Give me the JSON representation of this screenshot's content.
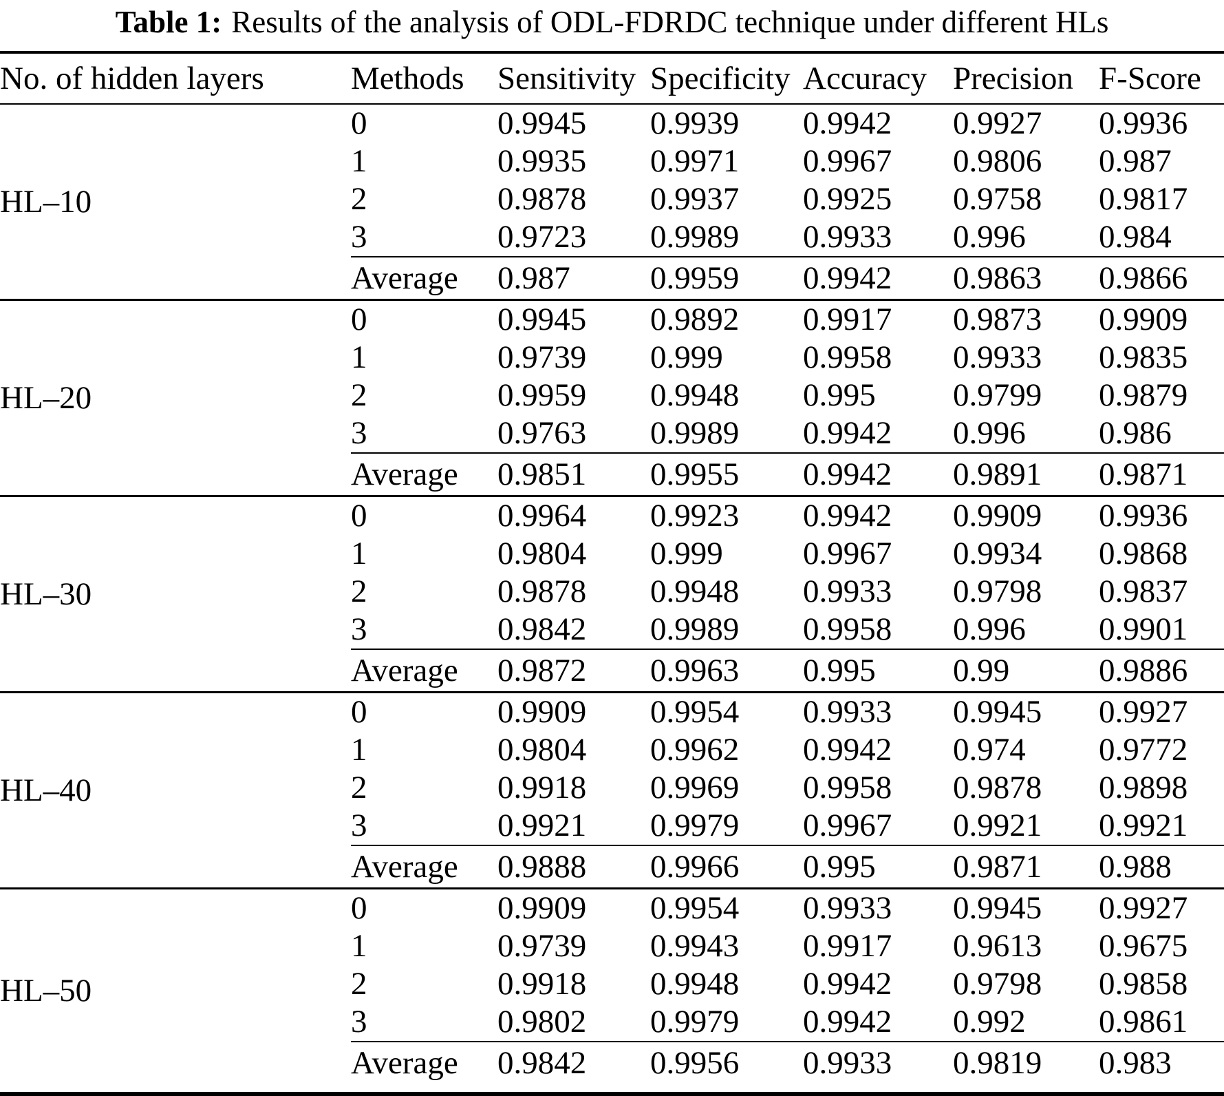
{
  "title": {
    "label": "Table 1:",
    "text": "Results of the analysis of ODL-FDRDC technique under different HLs"
  },
  "table": {
    "columns": [
      "No. of hidden layers",
      "Methods",
      "Sensitivity",
      "Specificity",
      "Accuracy",
      "Precision",
      "F-Score"
    ],
    "average_label": "Average",
    "sections": [
      {
        "group": "HL–10",
        "rows": [
          {
            "method": "0",
            "values": [
              "0.9945",
              "0.9939",
              "0.9942",
              "0.9927",
              "0.9936"
            ]
          },
          {
            "method": "1",
            "values": [
              "0.9935",
              "0.9971",
              "0.9967",
              "0.9806",
              "0.987"
            ]
          },
          {
            "method": "2",
            "values": [
              "0.9878",
              "0.9937",
              "0.9925",
              "0.9758",
              "0.9817"
            ]
          },
          {
            "method": "3",
            "values": [
              "0.9723",
              "0.9989",
              "0.9933",
              "0.996",
              "0.984"
            ]
          }
        ],
        "average": [
          "0.987",
          "0.9959",
          "0.9942",
          "0.9863",
          "0.9866"
        ]
      },
      {
        "group": "HL–20",
        "rows": [
          {
            "method": "0",
            "values": [
              "0.9945",
              "0.9892",
              "0.9917",
              "0.9873",
              "0.9909"
            ]
          },
          {
            "method": "1",
            "values": [
              "0.9739",
              "0.999",
              "0.9958",
              "0.9933",
              "0.9835"
            ]
          },
          {
            "method": "2",
            "values": [
              "0.9959",
              "0.9948",
              "0.995",
              "0.9799",
              "0.9879"
            ]
          },
          {
            "method": "3",
            "values": [
              "0.9763",
              "0.9989",
              "0.9942",
              "0.996",
              "0.986"
            ]
          }
        ],
        "average": [
          "0.9851",
          "0.9955",
          "0.9942",
          "0.9891",
          "0.9871"
        ]
      },
      {
        "group": "HL–30",
        "rows": [
          {
            "method": "0",
            "values": [
              "0.9964",
              "0.9923",
              "0.9942",
              "0.9909",
              "0.9936"
            ]
          },
          {
            "method": "1",
            "values": [
              "0.9804",
              "0.999",
              "0.9967",
              "0.9934",
              "0.9868"
            ]
          },
          {
            "method": "2",
            "values": [
              "0.9878",
              "0.9948",
              "0.9933",
              "0.9798",
              "0.9837"
            ]
          },
          {
            "method": "3",
            "values": [
              "0.9842",
              "0.9989",
              "0.9958",
              "0.996",
              "0.9901"
            ]
          }
        ],
        "average": [
          "0.9872",
          "0.9963",
          "0.995",
          "0.99",
          "0.9886"
        ]
      },
      {
        "group": "HL–40",
        "rows": [
          {
            "method": "0",
            "values": [
              "0.9909",
              "0.9954",
              "0.9933",
              "0.9945",
              "0.9927"
            ]
          },
          {
            "method": "1",
            "values": [
              "0.9804",
              "0.9962",
              "0.9942",
              "0.974",
              "0.9772"
            ]
          },
          {
            "method": "2",
            "values": [
              "0.9918",
              "0.9969",
              "0.9958",
              "0.9878",
              "0.9898"
            ]
          },
          {
            "method": "3",
            "values": [
              "0.9921",
              "0.9979",
              "0.9967",
              "0.9921",
              "0.9921"
            ]
          }
        ],
        "average": [
          "0.9888",
          "0.9966",
          "0.995",
          "0.9871",
          "0.988"
        ]
      },
      {
        "group": "HL–50",
        "rows": [
          {
            "method": "0",
            "values": [
              "0.9909",
              "0.9954",
              "0.9933",
              "0.9945",
              "0.9927"
            ]
          },
          {
            "method": "1",
            "values": [
              "0.9739",
              "0.9943",
              "0.9917",
              "0.9613",
              "0.9675"
            ]
          },
          {
            "method": "2",
            "values": [
              "0.9918",
              "0.9948",
              "0.9942",
              "0.9798",
              "0.9858"
            ]
          },
          {
            "method": "3",
            "values": [
              "0.9802",
              "0.9979",
              "0.9942",
              "0.992",
              "0.9861"
            ]
          }
        ],
        "average": [
          "0.9842",
          "0.9956",
          "0.9933",
          "0.9819",
          "0.983"
        ]
      }
    ]
  }
}
